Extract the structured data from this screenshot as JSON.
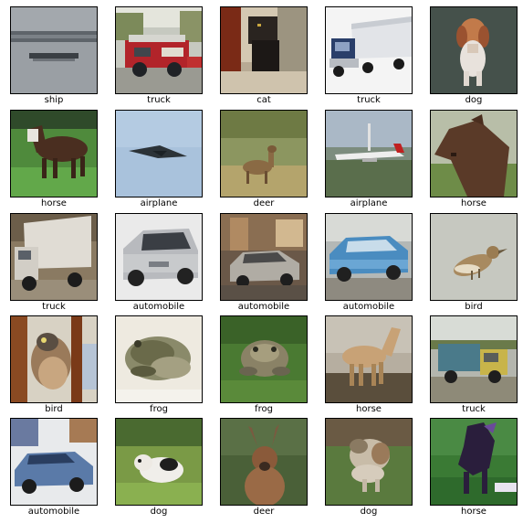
{
  "figure": {
    "rows": 5,
    "cols": 5,
    "images": [
      {
        "label": "ship",
        "subject": "ship"
      },
      {
        "label": "truck",
        "subject": "fire-truck"
      },
      {
        "label": "cat",
        "subject": "cat"
      },
      {
        "label": "truck",
        "subject": "semi-truck"
      },
      {
        "label": "dog",
        "subject": "dog"
      },
      {
        "label": "horse",
        "subject": "horse"
      },
      {
        "label": "airplane",
        "subject": "stealth-bomber"
      },
      {
        "label": "deer",
        "subject": "deer"
      },
      {
        "label": "airplane",
        "subject": "airliner"
      },
      {
        "label": "horse",
        "subject": "horse-head"
      },
      {
        "label": "truck",
        "subject": "box-truck"
      },
      {
        "label": "automobile",
        "subject": "silver-suv"
      },
      {
        "label": "automobile",
        "subject": "sedan"
      },
      {
        "label": "automobile",
        "subject": "blue-car"
      },
      {
        "label": "bird",
        "subject": "bird"
      },
      {
        "label": "bird",
        "subject": "bird-closeup"
      },
      {
        "label": "frog",
        "subject": "frog"
      },
      {
        "label": "frog",
        "subject": "frog-in-grass"
      },
      {
        "label": "horse",
        "subject": "horse"
      },
      {
        "label": "truck",
        "subject": "dump-truck"
      },
      {
        "label": "automobile",
        "subject": "blue-convertible"
      },
      {
        "label": "dog",
        "subject": "dog-on-grass"
      },
      {
        "label": "deer",
        "subject": "deer-antlers"
      },
      {
        "label": "dog",
        "subject": "dog-on-grass"
      },
      {
        "label": "horse",
        "subject": "rearing-horse"
      }
    ]
  }
}
